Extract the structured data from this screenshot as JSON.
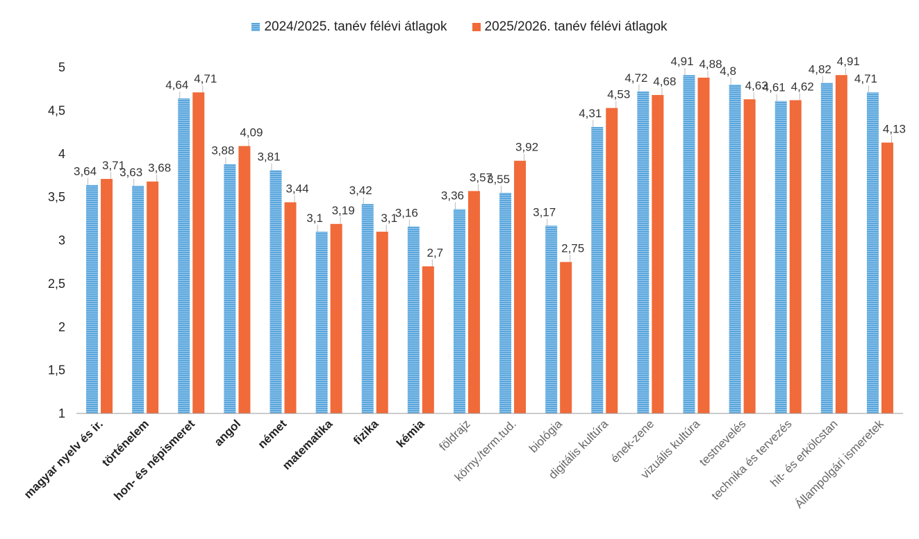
{
  "legend": {
    "series1": "2024/2025. tanév félévi átlagok",
    "series2": "2025/2026. tanév félévi átlagok"
  },
  "colors": {
    "series1": "#5aa6dc",
    "series1_stripe": "#9ccbee",
    "series2": "#f06a3a"
  },
  "chart_data": {
    "type": "bar",
    "title": "",
    "xlabel": "",
    "ylabel": "",
    "ylim": [
      1,
      5
    ],
    "yticks": [
      "1",
      "1,5",
      "2",
      "2,5",
      "3",
      "3,5",
      "4",
      "4,5",
      "5"
    ],
    "legend_position": "top-center",
    "grid": false,
    "categories": [
      "magyar nyelv és ir.",
      "történelem",
      "hon- és népismeret",
      "angol",
      "német",
      "matematika",
      "fizika",
      "kémia",
      "földrajz",
      "körny./term.tud.",
      "biológia",
      "digitális kultúra",
      "ének-zene",
      "vizuális kultúra",
      "testnevelés",
      "technika és tervezés",
      "hit- és erkölcstan",
      "Állampolgári ismeretek"
    ],
    "series": [
      {
        "name": "2024/2025. tanév félévi átlagok",
        "values": [
          3.64,
          3.63,
          4.64,
          3.88,
          3.81,
          3.1,
          3.42,
          3.16,
          3.36,
          3.55,
          3.17,
          4.31,
          4.72,
          4.91,
          4.8,
          4.61,
          4.82,
          4.71
        ],
        "labels": [
          "3,64",
          "3,63",
          "4,64",
          "3,88",
          "3,81",
          "3,1",
          "3,42",
          "3,16",
          "3,36",
          "3,55",
          "3,17",
          "4,31",
          "4,72",
          "4,91",
          "4,8",
          "4,61",
          "4,82",
          "4,71"
        ]
      },
      {
        "name": "2025/2026. tanév félévi átlagok",
        "values": [
          3.71,
          3.68,
          4.71,
          4.09,
          3.44,
          3.19,
          3.1,
          2.7,
          3.57,
          3.92,
          2.75,
          4.53,
          4.68,
          4.88,
          4.63,
          4.62,
          4.91,
          4.13
        ],
        "labels": [
          "3,71",
          "3,68",
          "4,71",
          "4,09",
          "3,44",
          "3,19",
          "3,1",
          "2,7",
          "3,57",
          "3,92",
          "2,75",
          "4,53",
          "4,68",
          "4,88",
          "4,63",
          "4,62",
          "4,91",
          "4,13"
        ]
      }
    ]
  }
}
